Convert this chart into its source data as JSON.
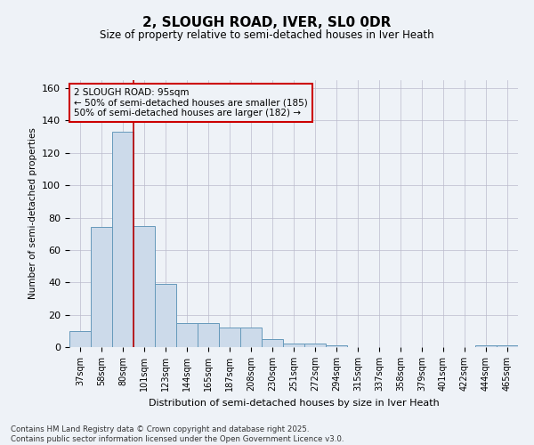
{
  "title1": "2, SLOUGH ROAD, IVER, SL0 0DR",
  "title2": "Size of property relative to semi-detached houses in Iver Heath",
  "xlabel": "Distribution of semi-detached houses by size in Iver Heath",
  "ylabel": "Number of semi-detached properties",
  "categories": [
    "37sqm",
    "58sqm",
    "80sqm",
    "101sqm",
    "123sqm",
    "144sqm",
    "165sqm",
    "187sqm",
    "208sqm",
    "230sqm",
    "251sqm",
    "272sqm",
    "294sqm",
    "315sqm",
    "337sqm",
    "358sqm",
    "379sqm",
    "401sqm",
    "422sqm",
    "444sqm",
    "465sqm"
  ],
  "values": [
    10,
    74,
    133,
    75,
    39,
    15,
    15,
    12,
    12,
    5,
    2,
    2,
    1,
    0,
    0,
    0,
    0,
    0,
    0,
    1,
    1
  ],
  "bar_color": "#ccdaea",
  "bar_edge_color": "#6699bb",
  "grid_color": "#bbbbcc",
  "vline_x": 2.5,
  "vline_color": "#bb0000",
  "annotation_text": "2 SLOUGH ROAD: 95sqm\n← 50% of semi-detached houses are smaller (185)\n50% of semi-detached houses are larger (182) →",
  "annotation_box_color": "#cc0000",
  "ylim": [
    0,
    165
  ],
  "yticks": [
    0,
    20,
    40,
    60,
    80,
    100,
    120,
    140,
    160
  ],
  "footer": "Contains HM Land Registry data © Crown copyright and database right 2025.\nContains public sector information licensed under the Open Government Licence v3.0.",
  "background_color": "#eef2f7"
}
